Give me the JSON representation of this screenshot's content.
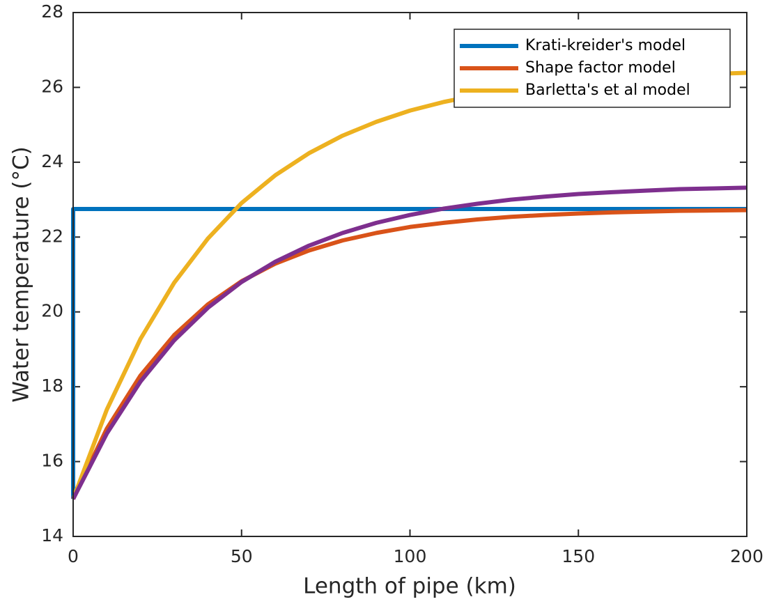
{
  "chart_data": {
    "type": "line",
    "xlabel": "Length of pipe (km)",
    "ylabel": "Water temperature (°C)",
    "xlim": [
      0,
      200
    ],
    "xticks": [
      0,
      50,
      100,
      150,
      200
    ],
    "ylim": [
      14,
      28
    ],
    "yticks": [
      14,
      16,
      18,
      20,
      22,
      24,
      26,
      28
    ],
    "legend": "upper right",
    "series": [
      {
        "name": "Krati-kreider's model",
        "color": "#0072BD",
        "x": [
          0,
          0,
          200
        ],
        "values": [
          15,
          22.75,
          22.75
        ]
      },
      {
        "name": "Shape factor model",
        "color": "#D95319",
        "x": [
          0,
          10,
          20,
          30,
          40,
          50,
          60,
          70,
          80,
          90,
          100,
          110,
          120,
          130,
          140,
          150,
          160,
          170,
          180,
          190,
          200
        ],
        "values": [
          15,
          16.88,
          18.3,
          19.38,
          20.2,
          20.82,
          21.29,
          21.64,
          21.91,
          22.11,
          22.27,
          22.38,
          22.47,
          22.54,
          22.59,
          22.63,
          22.66,
          22.68,
          22.7,
          22.71,
          22.72
        ]
      },
      {
        "name": "Barletta's et al model",
        "color": "#EDB120",
        "x": [
          0,
          10,
          20,
          30,
          40,
          50,
          60,
          70,
          80,
          90,
          100,
          110,
          120,
          130,
          140,
          150,
          160,
          170,
          180,
          190,
          200
        ],
        "values": [
          15,
          17.39,
          19.28,
          20.78,
          21.96,
          22.91,
          23.65,
          24.24,
          24.71,
          25.08,
          25.38,
          25.61,
          25.79,
          25.94,
          26.06,
          26.15,
          26.22,
          26.28,
          26.33,
          26.36,
          26.39
        ]
      },
      {
        "color": "#7E2F8E",
        "x": [
          0,
          10,
          20,
          30,
          40,
          50,
          60,
          70,
          80,
          90,
          100,
          110,
          120,
          130,
          140,
          150,
          160,
          170,
          180,
          190,
          200
        ],
        "values": [
          15,
          16.75,
          18.14,
          19.24,
          20.11,
          20.8,
          21.34,
          21.77,
          22.11,
          22.38,
          22.59,
          22.76,
          22.89,
          23.0,
          23.08,
          23.15,
          23.2,
          23.24,
          23.28,
          23.3,
          23.32
        ]
      }
    ]
  }
}
